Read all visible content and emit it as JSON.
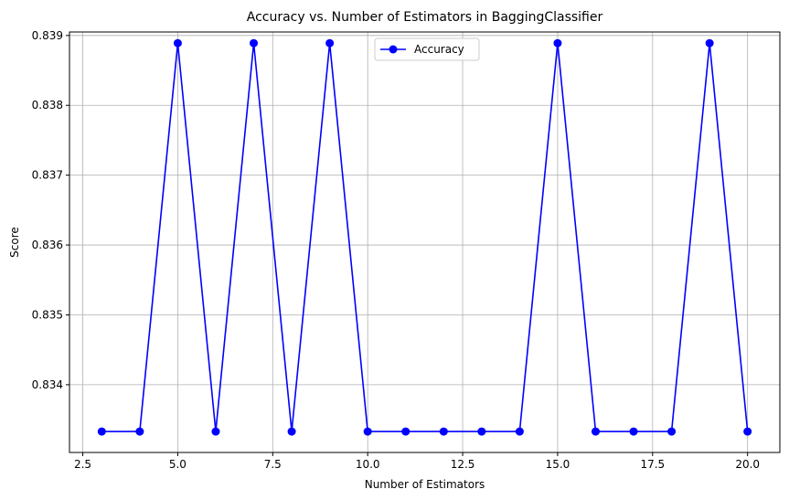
{
  "chart_data": {
    "type": "line",
    "title": "Accuracy vs. Number of Estimators in BaggingClassifier",
    "xlabel": "Number of Estimators",
    "ylabel": "Score",
    "xlim": [
      2.15,
      20.85
    ],
    "ylim": [
      0.83303,
      0.83905
    ],
    "xticks": [
      2.5,
      5.0,
      7.5,
      10.0,
      12.5,
      15.0,
      17.5,
      20.0
    ],
    "xtick_labels": [
      "2.5",
      "5.0",
      "7.5",
      "10.0",
      "12.5",
      "15.0",
      "17.5",
      "20.0"
    ],
    "yticks": [
      0.834,
      0.835,
      0.836,
      0.837,
      0.838,
      0.839
    ],
    "ytick_labels": [
      "0.834",
      "0.835",
      "0.836",
      "0.837",
      "0.838",
      "0.839"
    ],
    "grid": true,
    "legend_position": "top-center",
    "series": [
      {
        "name": "Accuracy",
        "color": "#0000ff",
        "marker": "circle",
        "x": [
          3,
          4,
          5,
          6,
          7,
          8,
          9,
          10,
          11,
          12,
          13,
          14,
          15,
          16,
          17,
          18,
          19,
          20
        ],
        "values": [
          0.83333,
          0.83333,
          0.83889,
          0.83333,
          0.83889,
          0.83333,
          0.83889,
          0.83333,
          0.83333,
          0.83333,
          0.83333,
          0.83333,
          0.83889,
          0.83333,
          0.83333,
          0.83333,
          0.83889,
          0.83333
        ]
      }
    ]
  }
}
